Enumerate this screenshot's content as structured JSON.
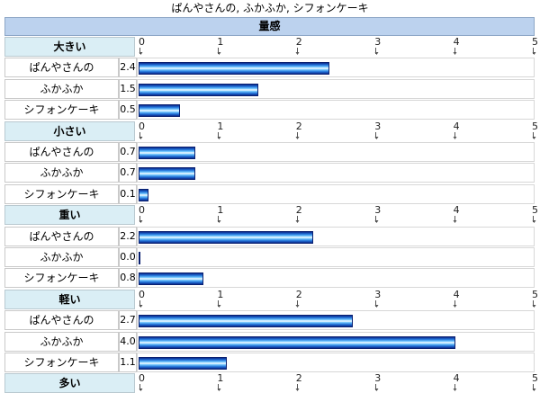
{
  "title": "ぱんやさんの, ふかふか, シフォンケーキ",
  "header": "量感",
  "ticks": [
    "0",
    "1",
    "2",
    "3",
    "4",
    "5"
  ],
  "chart_data": {
    "type": "bar",
    "orientation": "horizontal",
    "xlim": [
      0,
      5
    ],
    "series_names": [
      "ぱんやさんの",
      "ふかふか",
      "シフォンケーキ"
    ],
    "groups": [
      {
        "label": "大きい",
        "rows": [
          {
            "name": "ぱんやさんの",
            "value": 2.4,
            "value_label": "2.4"
          },
          {
            "name": "ふかふか",
            "value": 1.5,
            "value_label": "1.5"
          },
          {
            "name": "シフォンケーキ",
            "value": 0.5,
            "value_label": "0.5"
          }
        ]
      },
      {
        "label": "小さい",
        "rows": [
          {
            "name": "ぱんやさんの",
            "value": 0.7,
            "value_label": "0.7"
          },
          {
            "name": "ふかふか",
            "value": 0.7,
            "value_label": "0.7"
          },
          {
            "name": "シフォンケーキ",
            "value": 0.1,
            "value_label": "0.1"
          }
        ]
      },
      {
        "label": "重い",
        "rows": [
          {
            "name": "ぱんやさんの",
            "value": 2.2,
            "value_label": "2.2"
          },
          {
            "name": "ふかふか",
            "value": 0.0,
            "value_label": "0.0"
          },
          {
            "name": "シフォンケーキ",
            "value": 0.8,
            "value_label": "0.8"
          }
        ]
      },
      {
        "label": "軽い",
        "rows": [
          {
            "name": "ぱんやさんの",
            "value": 2.7,
            "value_label": "2.7"
          },
          {
            "name": "ふかふか",
            "value": 4.0,
            "value_label": "4.0"
          },
          {
            "name": "シフォンケーキ",
            "value": 1.1,
            "value_label": "1.1"
          }
        ]
      },
      {
        "label": "多い",
        "rows": []
      }
    ]
  }
}
